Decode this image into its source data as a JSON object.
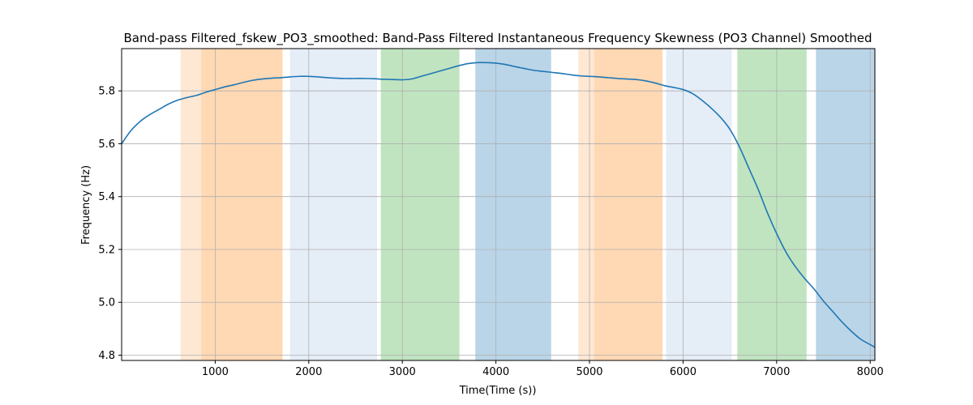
{
  "chart_data": {
    "type": "line",
    "title": "Band-pass Filtered_fskew_PO3_smoothed: Band-Pass Filtered Instantaneous Frequency Skewness (PO3 Channel) Smoothed",
    "xlabel": "Time(Time (s))",
    "ylabel": "Frequency (Hz)",
    "xlim": [
      0,
      8050
    ],
    "ylim": [
      4.78,
      5.96
    ],
    "xticks": [
      1000,
      2000,
      3000,
      4000,
      5000,
      6000,
      7000,
      8000
    ],
    "yticks": [
      4.8,
      5.0,
      5.2,
      5.4,
      5.6,
      5.8
    ],
    "grid": true,
    "line_color": "#1f77b4",
    "series": [
      {
        "x": [
          0,
          100,
          200,
          300,
          400,
          500,
          600,
          700,
          800,
          900,
          1000,
          1100,
          1200,
          1300,
          1400,
          1500,
          1600,
          1700,
          1800,
          1900,
          2000,
          2100,
          2200,
          2300,
          2400,
          2500,
          2600,
          2700,
          2800,
          2900,
          3000,
          3100,
          3200,
          3300,
          3400,
          3500,
          3600,
          3700,
          3800,
          3900,
          4000,
          4100,
          4200,
          4300,
          4400,
          4500,
          4600,
          4700,
          4800,
          4900,
          5000,
          5100,
          5200,
          5300,
          5400,
          5500,
          5600,
          5700,
          5800,
          5900,
          6000,
          6100,
          6200,
          6300,
          6400,
          6500,
          6600,
          6700,
          6800,
          6900,
          7000,
          7100,
          7200,
          7300,
          7400,
          7500,
          7600,
          7700,
          7800,
          7900,
          8000,
          8050
        ],
        "y": [
          5.6,
          5.65,
          5.685,
          5.71,
          5.73,
          5.75,
          5.765,
          5.775,
          5.783,
          5.795,
          5.805,
          5.815,
          5.823,
          5.832,
          5.84,
          5.845,
          5.848,
          5.85,
          5.853,
          5.855,
          5.855,
          5.853,
          5.85,
          5.848,
          5.847,
          5.847,
          5.847,
          5.846,
          5.844,
          5.843,
          5.842,
          5.845,
          5.855,
          5.865,
          5.875,
          5.885,
          5.895,
          5.903,
          5.907,
          5.907,
          5.905,
          5.9,
          5.892,
          5.885,
          5.878,
          5.874,
          5.87,
          5.866,
          5.861,
          5.857,
          5.855,
          5.853,
          5.85,
          5.847,
          5.845,
          5.843,
          5.838,
          5.83,
          5.82,
          5.813,
          5.805,
          5.79,
          5.765,
          5.735,
          5.7,
          5.655,
          5.59,
          5.51,
          5.43,
          5.34,
          5.26,
          5.19,
          5.135,
          5.09,
          5.05,
          5.005,
          4.965,
          4.925,
          4.89,
          4.86,
          4.84,
          4.83
        ]
      }
    ],
    "bands": [
      {
        "x0": 630,
        "x1": 850,
        "color": "#ffe8d3"
      },
      {
        "x0": 850,
        "x1": 1720,
        "color": "#ffd8b4"
      },
      {
        "x0": 1800,
        "x1": 2730,
        "color": "#e5edf7"
      },
      {
        "x0": 2770,
        "x1": 3610,
        "color": "#c0e4c0"
      },
      {
        "x0": 3780,
        "x1": 4590,
        "color": "#bad5e8"
      },
      {
        "x0": 4880,
        "x1": 5050,
        "color": "#ffe8d3"
      },
      {
        "x0": 5050,
        "x1": 5780,
        "color": "#ffd8b4"
      },
      {
        "x0": 5820,
        "x1": 6520,
        "color": "#e5edf7"
      },
      {
        "x0": 6580,
        "x1": 7320,
        "color": "#c0e4c0"
      },
      {
        "x0": 7420,
        "x1": 8050,
        "color": "#bad5e8"
      }
    ]
  }
}
